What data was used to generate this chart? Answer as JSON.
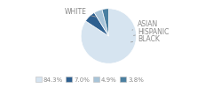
{
  "labels": [
    "WHITE",
    "ASIAN",
    "HISPANIC",
    "BLACK"
  ],
  "values": [
    84.3,
    7.0,
    4.9,
    3.8
  ],
  "colors": [
    "#d6e4f0",
    "#2e6090",
    "#a8c4d8",
    "#4a7fa0"
  ],
  "legend_colors": [
    "#d6e4f0",
    "#2e6090",
    "#a8c4d8",
    "#4a7fa0"
  ],
  "legend_labels": [
    "84.3%",
    "7.0%",
    "4.9%",
    "3.8%"
  ],
  "startangle": 90,
  "figsize": [
    2.4,
    1.0
  ],
  "dpi": 100,
  "text_color": "#888888",
  "line_color": "#999999"
}
